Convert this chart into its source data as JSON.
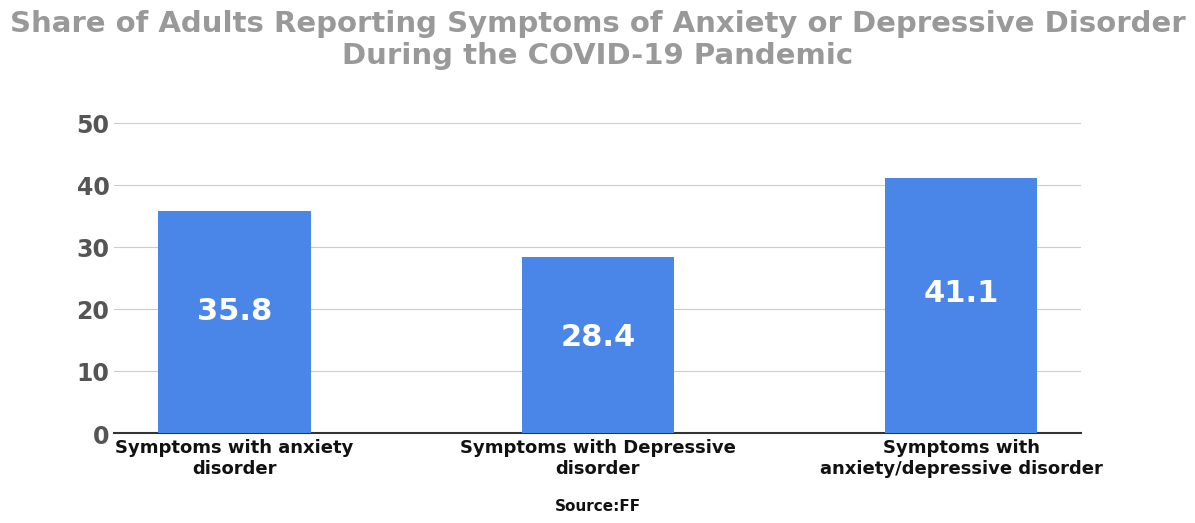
{
  "title": "Share of Adults Reporting Symptoms of Anxiety or Depressive Disorder\nDuring the COVID-19 Pandemic",
  "categories": [
    "Symptoms with anxiety\ndisorder",
    "Symptoms with Depressive\ndisorder",
    "Symptoms with\nanxiety/depressive disorder"
  ],
  "values": [
    35.8,
    28.4,
    41.1
  ],
  "bar_color": "#4a86e8",
  "bar_label_color": "#ffffff",
  "bar_label_fontsize": 22,
  "title_color": "#999999",
  "title_fontsize": 21,
  "tick_label_color": "#222222",
  "ytick_label_color": "#555555",
  "tick_fontsize": 17,
  "xlabel_fontsize": 13,
  "xlabel_color": "#111111",
  "yticks": [
    0,
    10,
    20,
    30,
    40,
    50
  ],
  "ylim": [
    0,
    55
  ],
  "background_color": "#ffffff",
  "source_text": "Source:FF",
  "source_fontsize": 11,
  "source_color": "#111111"
}
